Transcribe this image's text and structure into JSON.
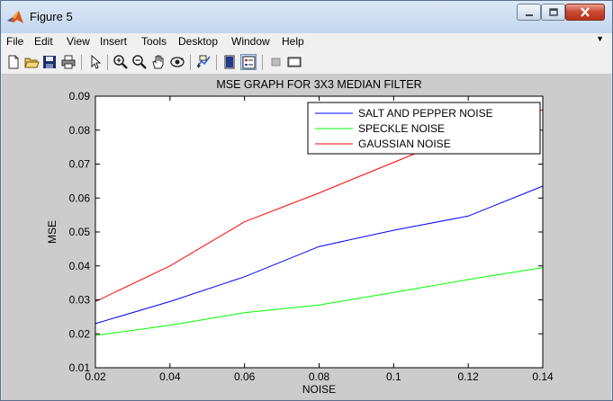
{
  "window": {
    "title": "Figure 5",
    "menu": [
      "File",
      "Edit",
      "View",
      "Insert",
      "Tools",
      "Desktop",
      "Window",
      "Help"
    ]
  },
  "toolbar": {
    "icons": [
      "new-figure-icon",
      "open-file-icon",
      "save-icon",
      "print-icon",
      "pointer-icon",
      "zoom-in-icon",
      "zoom-out-icon",
      "pan-icon",
      "rotate-3d-icon",
      "data-cursor-icon",
      "colorbar-icon",
      "legend-icon",
      "hide-plot-tools-icon",
      "show-plot-tools-icon"
    ]
  },
  "chart_data": {
    "type": "line",
    "title": "MSE GRAPH FOR 3X3 MEDIAN FILTER",
    "xlabel": "NOISE",
    "ylabel": "MSE",
    "x": [
      0.02,
      0.04,
      0.06,
      0.08,
      0.1,
      0.12,
      0.14
    ],
    "xlim": [
      0.02,
      0.14
    ],
    "ylim": [
      0.01,
      0.09
    ],
    "xticks": [
      "0.02",
      "0.04",
      "0.06",
      "0.08",
      "0.1",
      "0.12",
      "0.14"
    ],
    "yticks": [
      "0.01",
      "0.02",
      "0.03",
      "0.04",
      "0.05",
      "0.06",
      "0.07",
      "0.08",
      "0.09"
    ],
    "grid": false,
    "legend_position": "top-right",
    "series": [
      {
        "name": "SALT AND PEPPER NOISE",
        "color": "#0000ff",
        "values": [
          0.023,
          0.0295,
          0.0368,
          0.0457,
          0.0505,
          0.0547,
          0.0635
        ]
      },
      {
        "name": "SPECKLE NOISE",
        "color": "#00ff00",
        "values": [
          0.0195,
          0.0225,
          0.0262,
          0.0285,
          0.0322,
          0.036,
          0.0395
        ]
      },
      {
        "name": "GAUSSIAN NOISE",
        "color": "#ff0000",
        "values": [
          0.0295,
          0.04,
          0.053,
          0.0615,
          0.0705,
          0.0795,
          0.086
        ]
      }
    ]
  }
}
